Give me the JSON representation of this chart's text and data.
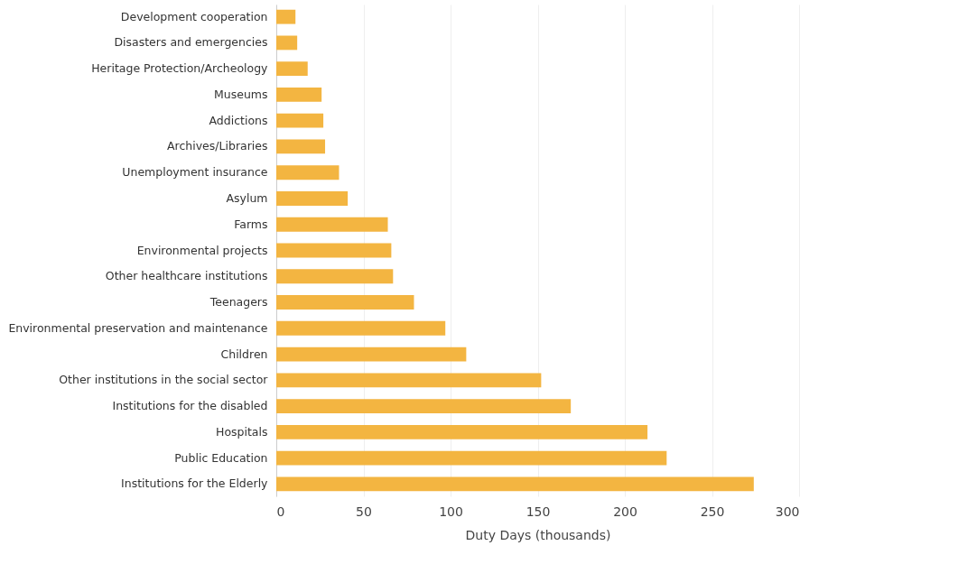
{
  "chart_data": {
    "type": "bar",
    "orientation": "horizontal",
    "xlabel": "Duty Days (thousands)",
    "categories": [
      "Development cooperation",
      "Disasters and emergencies",
      "Heritage Protection/Archeology",
      "Museums",
      "Addictions",
      "Archives/Libraries",
      "Unemployment insurance",
      "Asylum",
      "Farms",
      "Environmental projects",
      "Other healthcare institutions",
      "Teenagers",
      "Environmental preservation and maintenance",
      "Children",
      "Other institutions in the social sector",
      "Institutions for the disabled",
      "Hospitals",
      "Public Education",
      "Institutions for the Elderly"
    ],
    "values": [
      11,
      12,
      18,
      26,
      27,
      28,
      36,
      41,
      64,
      66,
      67,
      79,
      97,
      109,
      152,
      169,
      213,
      224,
      274
    ],
    "color": "#f3b541",
    "xlim": [
      0,
      300
    ],
    "xticks": [
      0,
      50,
      100,
      150,
      200,
      250,
      300
    ],
    "grid": "x"
  }
}
